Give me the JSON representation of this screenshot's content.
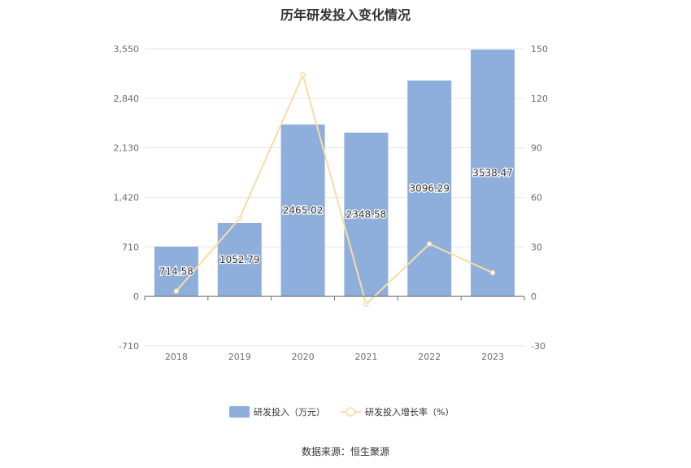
{
  "chart_data": {
    "type": "bar",
    "title": "历年研发投入变化情况",
    "categories": [
      "2018",
      "2019",
      "2020",
      "2021",
      "2022",
      "2023"
    ],
    "series": [
      {
        "name": "研发投入（万元）",
        "type": "bar",
        "axis": "left",
        "values": [
          714.58,
          1052.79,
          2465.02,
          2348.58,
          3096.29,
          3538.47
        ],
        "labels": [
          "714.58",
          "1052.79",
          "2465.02",
          "2348.58",
          "3096.29",
          "3538.47"
        ],
        "color": "#8eaedb"
      },
      {
        "name": "研发投入增长率（%）",
        "type": "line",
        "axis": "right",
        "values": [
          3.2,
          47.3,
          134.1,
          -4.7,
          31.8,
          14.3
        ],
        "color": "#f9dca6"
      }
    ],
    "y_left": {
      "min": -710,
      "max": 3550,
      "ticks": [
        "-710",
        "0",
        "710",
        "1,420",
        "2,130",
        "2,840",
        "3,550"
      ]
    },
    "y_right": {
      "min": -30,
      "max": 150,
      "ticks": [
        "-30",
        "0",
        "30",
        "60",
        "90",
        "120",
        "150"
      ]
    },
    "grid": true,
    "legend_position": "bottom"
  },
  "source": "数据来源：恒生聚源"
}
